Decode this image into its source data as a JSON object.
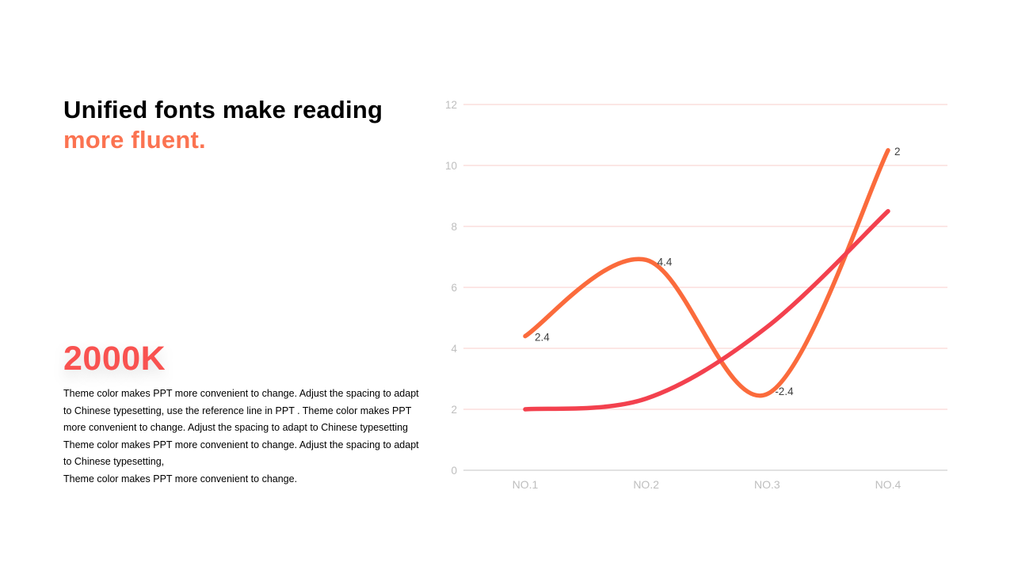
{
  "slide": {
    "heading": {
      "line1": "Unified fonts make reading",
      "line2": "more fluent."
    },
    "stat_value": "2000K",
    "paragraphs": [
      "Theme color makes PPT more convenient to change. Adjust the spacing to adapt to Chinese typesetting, use the reference line in PPT . Theme color makes PPT more convenient to change. Adjust the spacing to adapt to Chinese typesetting",
      "Theme color makes PPT more convenient to change. Adjust the spacing to adapt to Chinese typesetting,",
      "Theme color makes PPT more convenient to change."
    ]
  },
  "colors": {
    "heading_text": "#000000",
    "heading_accent": "#FB7351",
    "stat": "#F95250",
    "series_orange": "#FB6B3C",
    "series_red": "#F3414E",
    "gridline": "#FACCCB",
    "axis_line": "#D8D8D8",
    "tick_label": "#BEBEBE",
    "category_label": "#BEBEBE",
    "data_label": "#3F3F3F",
    "background": "#FFFFFF"
  },
  "chart_data": {
    "type": "line",
    "title": "",
    "xlabel": "",
    "ylabel": "",
    "categories": [
      "NO.1",
      "NO.2",
      "NO.3",
      "NO.4"
    ],
    "y_ticks": [
      12,
      10,
      8,
      6,
      4,
      2,
      0
    ],
    "ylim": [
      0,
      12
    ],
    "grid": true,
    "legend": false,
    "smooth": true,
    "series": [
      {
        "name": "orange-line",
        "color": "#FB6B3C",
        "plotted_values": [
          4.4,
          6.9,
          2.5,
          10.5
        ],
        "data_labels": [
          "2.4",
          "4.4",
          "-2.4",
          "2"
        ],
        "label_offsets": [
          {
            "dx": 12,
            "dy": 6
          },
          {
            "dx": 14,
            "dy": 7
          },
          {
            "dx": 10,
            "dy": 1
          },
          {
            "dx": 8,
            "dy": 6
          }
        ]
      },
      {
        "name": "red-line",
        "color": "#F3414E",
        "plotted_values": [
          2.0,
          2.35,
          4.7,
          8.5
        ],
        "data_labels": null
      }
    ]
  }
}
